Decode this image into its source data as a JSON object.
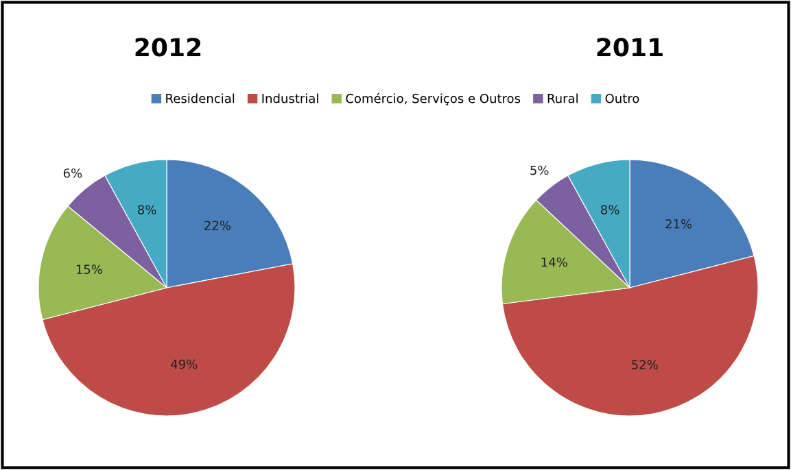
{
  "chart_data": [
    {
      "type": "pie",
      "title": "2012",
      "legend": "top",
      "value_labels": [
        "22%",
        "49%",
        "15%",
        "6%",
        "8%"
      ],
      "categories": [
        "Residencial",
        "Industrial",
        "Comércio, Serviços e Outros",
        "Rural",
        "Outro"
      ],
      "values": [
        22,
        49,
        15,
        6,
        8
      ],
      "colors": [
        "#4a7ebb",
        "#be4b48",
        "#98b954",
        "#7d60a0",
        "#46aac5"
      ]
    },
    {
      "type": "pie",
      "title": "2011",
      "value_labels": [
        "21%",
        "52%",
        "14%",
        "5%",
        "8%"
      ],
      "categories": [
        null,
        null,
        null,
        null,
        null
      ],
      "values": [
        21,
        52,
        14,
        5,
        8
      ],
      "colors": [
        "#4a7ebb",
        "#be4b48",
        "#98b954",
        "#7d60a0",
        "#46aac5"
      ]
    }
  ]
}
